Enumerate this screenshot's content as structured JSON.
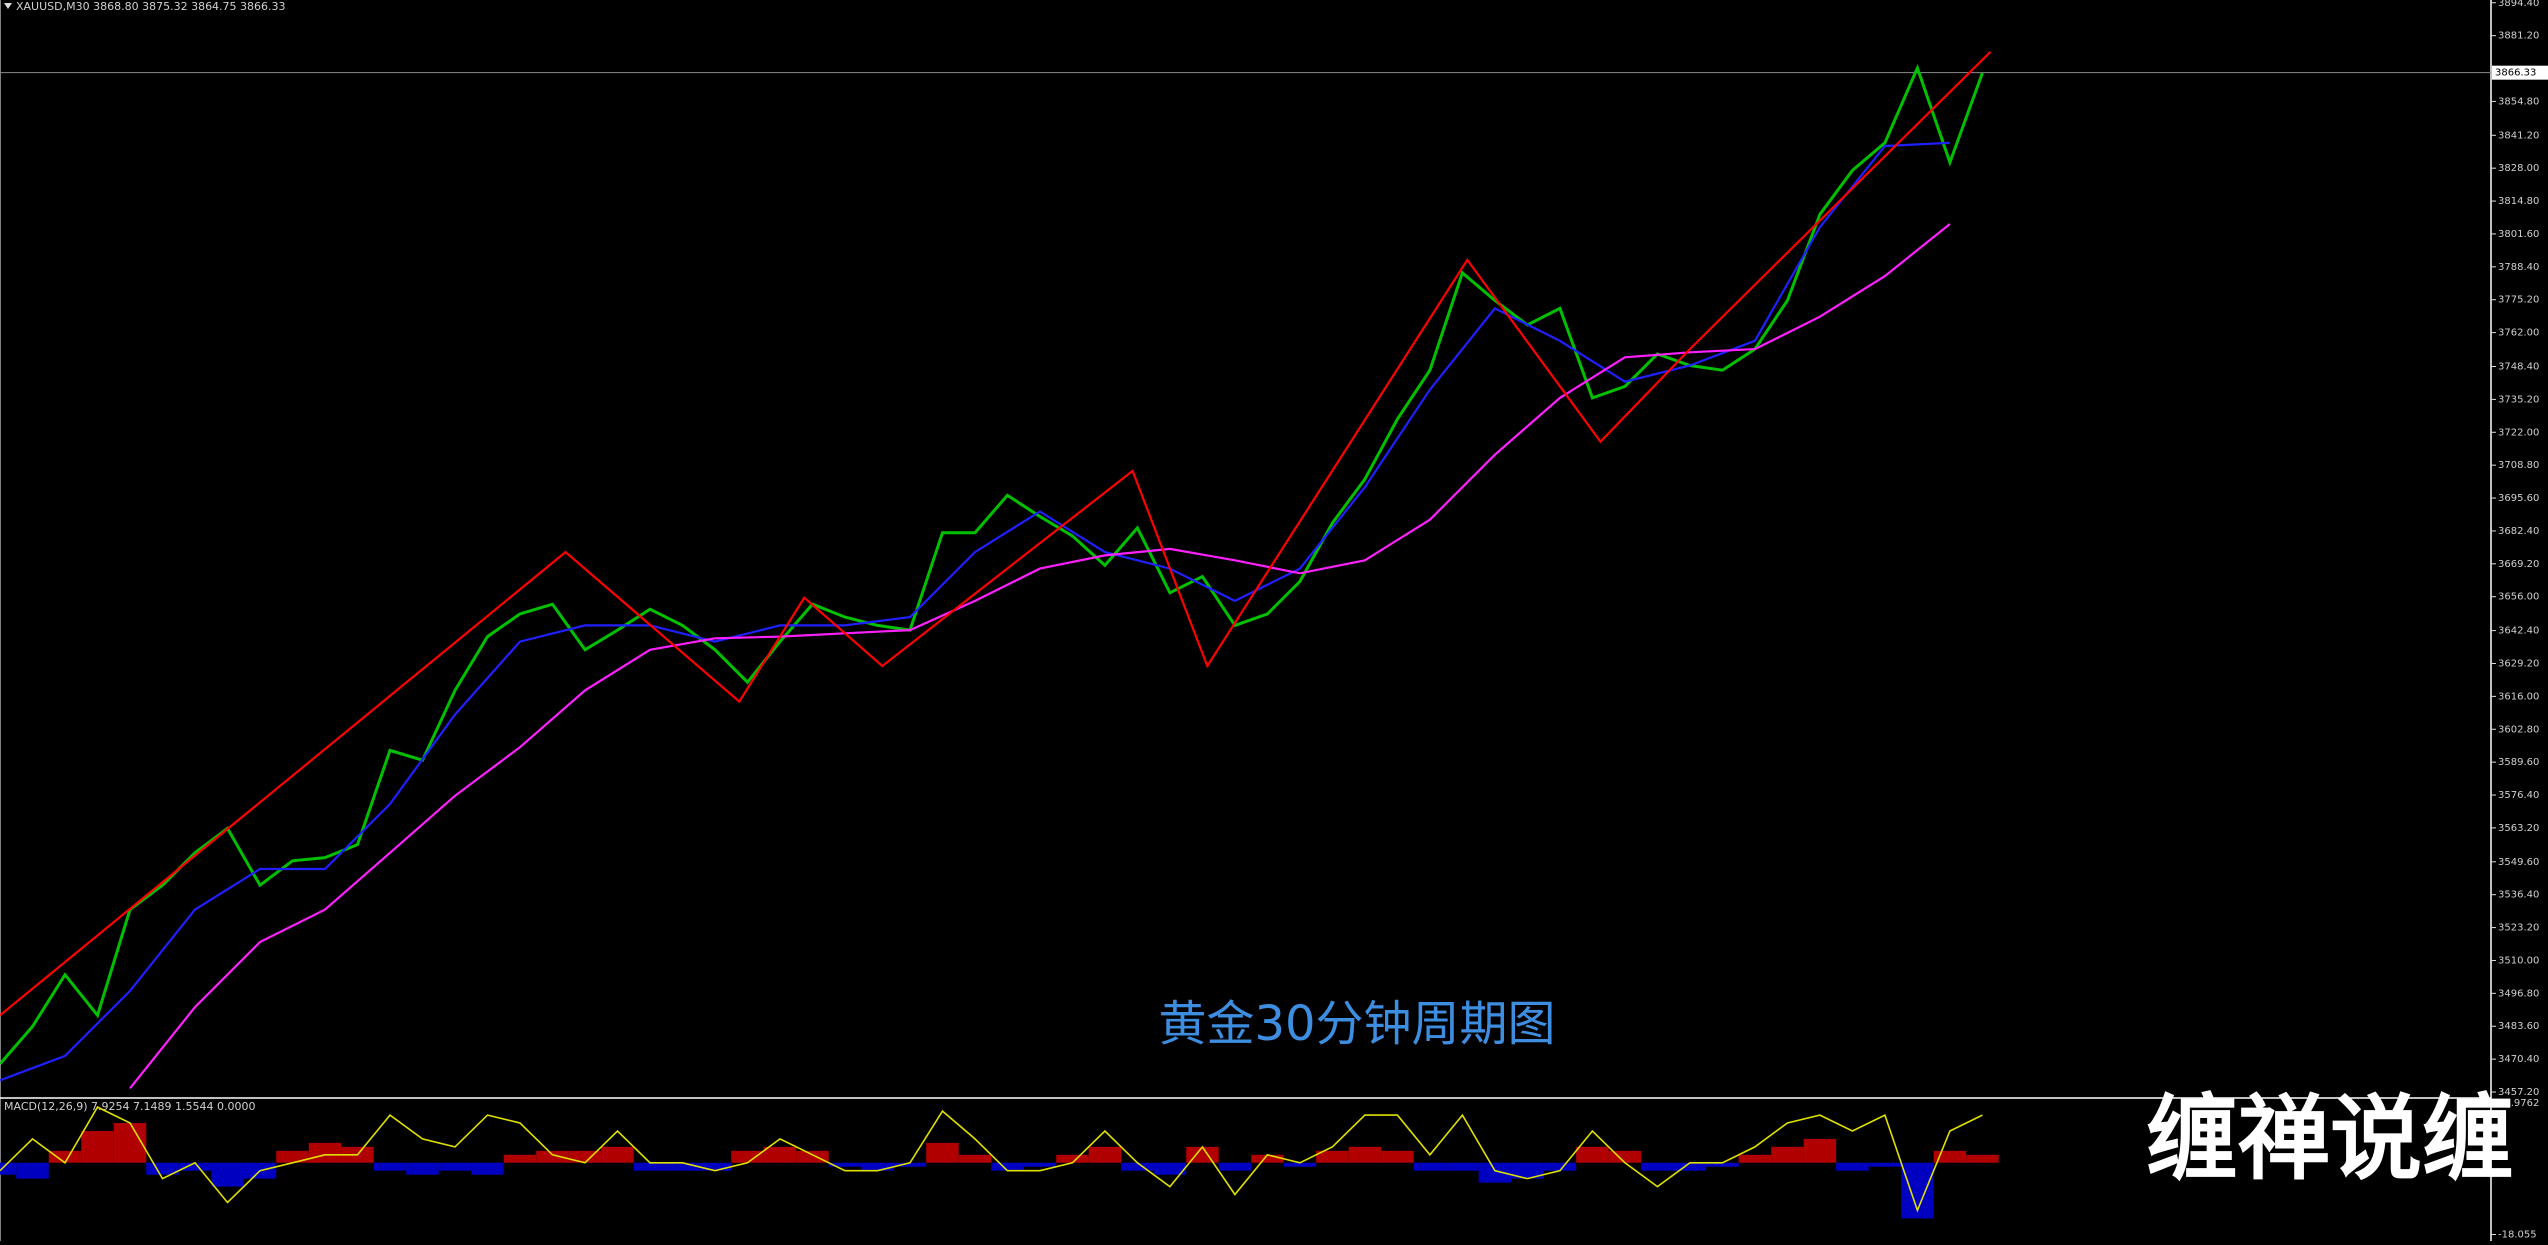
{
  "chart_data": [
    {
      "type": "line",
      "title": "XAUUSD,M30  3868.80 3875.32 3864.75 3866.33",
      "annotation": "黄金30分钟周期图",
      "xlim": [
        0,
        76.65
      ],
      "ylim": [
        3455.2,
        3895.5
      ],
      "yticks": [
        {
          "value": 3894.4,
          "label": "3894.40"
        },
        {
          "value": 3881.2,
          "label": "3881.20"
        },
        {
          "value": 3854.8,
          "label": "3854.80"
        },
        {
          "value": 3841.2,
          "label": "3841.20"
        },
        {
          "value": 3828,
          "label": "3828.00"
        },
        {
          "value": 3814.8,
          "label": "3814.80"
        },
        {
          "value": 3801.6,
          "label": "3801.60"
        },
        {
          "value": 3788.4,
          "label": "3788.40"
        },
        {
          "value": 3775.2,
          "label": "3775.20"
        },
        {
          "value": 3762,
          "label": "3762.00"
        },
        {
          "value": 3748.4,
          "label": "3748.40"
        },
        {
          "value": 3735.2,
          "label": "3735.20"
        },
        {
          "value": 3722,
          "label": "3722.00"
        },
        {
          "value": 3708.8,
          "label": "3708.80"
        },
        {
          "value": 3695.6,
          "label": "3695.60"
        },
        {
          "value": 3682.4,
          "label": "3682.40"
        },
        {
          "value": 3669.2,
          "label": "3669.20"
        },
        {
          "value": 3656,
          "label": "3656.00"
        },
        {
          "value": 3642.4,
          "label": "3642.40"
        },
        {
          "value": 3629.2,
          "label": "3629.20"
        },
        {
          "value": 3616,
          "label": "3616.00"
        },
        {
          "value": 3602.8,
          "label": "3602.80"
        },
        {
          "value": 3589.6,
          "label": "3589.60"
        },
        {
          "value": 3576.4,
          "label": "3576.40"
        },
        {
          "value": 3563.2,
          "label": "3563.20"
        },
        {
          "value": 3549.6,
          "label": "3549.60"
        },
        {
          "value": 3536.4,
          "label": "3536.40"
        },
        {
          "value": 3523.2,
          "label": "3523.20"
        },
        {
          "value": 3510,
          "label": "3510.00"
        },
        {
          "value": 3496.8,
          "label": "3496.80"
        },
        {
          "value": 3483.6,
          "label": "3483.60"
        },
        {
          "value": 3470.4,
          "label": "3470.40"
        },
        {
          "value": 3457.2,
          "label": "3457.20"
        }
      ],
      "current_price": {
        "value": 3866.33,
        "label": "3866.33"
      },
      "series": [
        {
          "color": "#00c000",
          "x": [
            0,
            1,
            2,
            3,
            4,
            5,
            6,
            7,
            8,
            9,
            10,
            11,
            12,
            13,
            14,
            15,
            16,
            17,
            18,
            19,
            20,
            21,
            22,
            23,
            24,
            25,
            26,
            27,
            28,
            29,
            30,
            31,
            32,
            33,
            34,
            35,
            36,
            37,
            38,
            39,
            40,
            41,
            42,
            43,
            44,
            45,
            46,
            47,
            48,
            49,
            50,
            51,
            52,
            53,
            54,
            55,
            56,
            57,
            58,
            59,
            60,
            61
          ],
          "values": [
            3468.5,
            3483.5,
            3504.3,
            3488.0,
            3530.4,
            3540.2,
            3553.2,
            3563.0,
            3540.2,
            3550.0,
            3551.3,
            3556.5,
            3594.3,
            3590.4,
            3618.4,
            3640.0,
            3649.1,
            3653.0,
            3634.7,
            3642.6,
            3651.0,
            3644.5,
            3634.7,
            3621.7,
            3638.0,
            3653.0,
            3647.8,
            3644.5,
            3642.6,
            3681.7,
            3681.7,
            3696.7,
            3688.2,
            3680.4,
            3668.6,
            3683.6,
            3657.6,
            3664.1,
            3644.5,
            3649.1,
            3662.1,
            3685.6,
            3703.2,
            3727.3,
            3746.9,
            3786.0,
            3774.9,
            3765.1,
            3771.7,
            3735.8,
            3740.4,
            3753.4,
            3748.8,
            3746.9,
            3755.4,
            3774.9,
            3809.5,
            3827.1,
            3838.2,
            3868.2,
            3830.3,
            3866.2
          ]
        },
        {
          "color": "#2020ff",
          "x": [
            0,
            2,
            4,
            6,
            8,
            10,
            12,
            14,
            16,
            18,
            20,
            22,
            24,
            26,
            28,
            30,
            32,
            34,
            36,
            38,
            40,
            42,
            44,
            46,
            48,
            50,
            52,
            54,
            56,
            58,
            60
          ],
          "values": [
            3461.9,
            3471.7,
            3497.8,
            3530.4,
            3546.7,
            3546.7,
            3572.8,
            3608.7,
            3638.0,
            3644.5,
            3644.5,
            3638.0,
            3644.5,
            3644.5,
            3647.8,
            3673.9,
            3690.2,
            3673.9,
            3667.3,
            3654.3,
            3667.3,
            3700.0,
            3739.1,
            3771.7,
            3758.7,
            3742.3,
            3748.8,
            3758.7,
            3804.3,
            3836.9,
            3838.2
          ]
        },
        {
          "color": "#ff20ff",
          "x": [
            0,
            2,
            4,
            6,
            8,
            10,
            12,
            14,
            16,
            18,
            20,
            22,
            24,
            26,
            28,
            30,
            32,
            34,
            36,
            38,
            40,
            42,
            44,
            46,
            48,
            50,
            52,
            54,
            56,
            58,
            60
          ],
          "values": [
            null,
            null,
            3458.7,
            3491.3,
            3517.4,
            3530.4,
            3553.2,
            3576.1,
            3595.6,
            3618.4,
            3634.7,
            3639.3,
            3640.0,
            3641.3,
            3642.6,
            3654.3,
            3667.3,
            3672.6,
            3675.2,
            3670.6,
            3665.4,
            3670.6,
            3686.9,
            3713.0,
            3735.8,
            3752.1,
            3754.1,
            3755.4,
            3768.4,
            3784.7,
            3805.6
          ]
        },
        {
          "color": "#ff0000",
          "x": [
            0,
            17.4,
            22.75,
            24.75,
            27.15,
            34.85,
            37.15,
            45.15,
            49.25,
            52,
            61.25
          ],
          "values": [
            3488.0,
            3673.9,
            3613.9,
            3655.6,
            3628.2,
            3706.5,
            3628.2,
            3791.2,
            3718.2,
            3755.4,
            3874.7
          ]
        }
      ]
    },
    {
      "type": "macd",
      "title": "MACD(12,26,9) 7.9254 7.1489 1.5544 0.0000",
      "xlim": [
        0,
        76.65
      ],
      "ylim": [
        -19.69,
        15.79
      ],
      "yticks": [
        14.9762,
        -18.055
      ],
      "positive_color": "#b00000",
      "negative_color": "#0000c0",
      "line_color": "#e0e000",
      "histogram": [
        -3,
        -4,
        3,
        8,
        10,
        -3,
        -2,
        -6,
        -4,
        3,
        5,
        4,
        -2,
        -3,
        -2,
        -3,
        2,
        3,
        3,
        4,
        -2,
        -2,
        -2,
        3,
        4,
        3,
        -1,
        -2,
        -1,
        5,
        2,
        -2,
        -1,
        2,
        4,
        -2,
        -3,
        4,
        -2,
        2,
        -1,
        3,
        4,
        3,
        -2,
        -2,
        -5,
        -4,
        -2,
        4,
        3,
        -2,
        -2,
        -1,
        2,
        4,
        6,
        -2,
        -1,
        -14,
        3,
        2
      ],
      "line": [
        -2,
        6,
        0,
        14,
        10,
        -4,
        0,
        -10,
        -2,
        0,
        2,
        2,
        12,
        6,
        4,
        12,
        10,
        2,
        0,
        8,
        0,
        0,
        -2,
        0,
        6,
        2,
        -2,
        -2,
        0,
        13,
        6,
        -2,
        -2,
        0,
        8,
        0,
        -6,
        4,
        -8,
        2,
        0,
        4,
        12,
        12,
        2,
        12,
        -2,
        -4,
        -2,
        8,
        0,
        -6,
        0,
        0,
        4,
        10,
        12,
        8,
        12,
        -12,
        8,
        12
      ]
    }
  ],
  "watermark": "缠禅说缠"
}
